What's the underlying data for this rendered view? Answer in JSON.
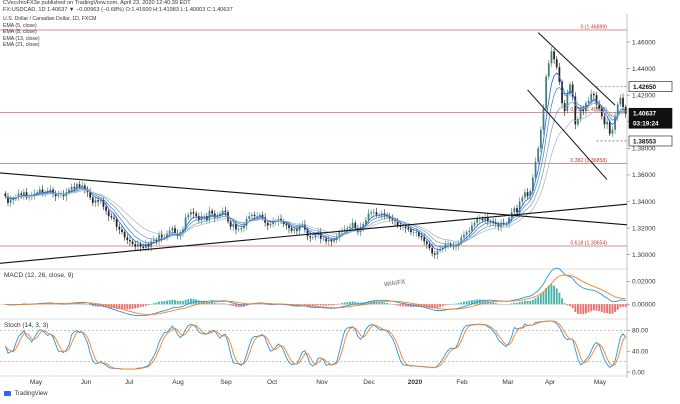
{
  "header": {
    "line1": "CVecchioFX3e published on TradingView.com, April 23, 2020 12:40:39 EDT",
    "line2": "FX:USDCAD, 1D  1.40637  ▼ −0.00963 (−0.68%)  O:1.41600  H:1.41983  L:1.40003  C:1.40637"
  },
  "legend": {
    "title": "U.S. Dollar / Canadian Dollar, 1D, FXCM",
    "items": [
      "EMA (5, close)",
      "EMA (8, close)",
      "EMA (13, close)",
      "EMA (21, close)"
    ]
  },
  "footer": {
    "brand": "TradingView"
  },
  "watermark": "WikiFX",
  "colors": {
    "up": "#3f7d76",
    "down": "#222222",
    "ema5": "#2b5fd9",
    "ema21": "#9fb8c8",
    "fib": "#d46a6a",
    "macd": "#2196f3",
    "signal": "#ff7f1f"
  },
  "chart_data": [
    {
      "type": "candlestick",
      "x_labels": [
        "May",
        "Jun",
        "Jul",
        "Aug",
        "Sep",
        "Oct",
        "Nov",
        "Dec",
        "2020",
        "Feb",
        "Mar",
        "Apr",
        "May"
      ],
      "ylim": [
        1.29,
        1.472
      ],
      "y_ticks": [
        "1.46000",
        "1.44000",
        "1.42000",
        "1.40000",
        "1.38000",
        "1.36000",
        "1.34000",
        "1.32000",
        "1.30000"
      ],
      "closes": [
        1.344,
        1.339,
        1.341,
        1.342,
        1.343,
        1.346,
        1.345,
        1.347,
        1.343,
        1.344,
        1.345,
        1.346,
        1.347,
        1.349,
        1.347,
        1.347,
        1.348,
        1.349,
        1.346,
        1.344,
        1.345,
        1.346,
        1.344,
        1.347,
        1.349,
        1.351,
        1.35,
        1.353,
        1.351,
        1.352,
        1.349,
        1.347,
        1.343,
        1.339,
        1.341,
        1.34,
        1.341,
        1.336,
        1.333,
        1.329,
        1.328,
        1.327,
        1.321,
        1.319,
        1.317,
        1.313,
        1.311,
        1.31,
        1.308,
        1.306,
        1.308,
        1.306,
        1.305,
        1.308,
        1.306,
        1.31,
        1.311,
        1.31,
        1.315,
        1.313,
        1.313,
        1.316,
        1.318,
        1.32,
        1.316,
        1.314,
        1.317,
        1.319,
        1.328,
        1.33,
        1.332,
        1.331,
        1.329,
        1.326,
        1.329,
        1.329,
        1.326,
        1.333,
        1.331,
        1.328,
        1.329,
        1.331,
        1.333,
        1.332,
        1.325,
        1.321,
        1.323,
        1.319,
        1.319,
        1.32,
        1.322,
        1.327,
        1.329,
        1.33,
        1.329,
        1.329,
        1.33,
        1.328,
        1.324,
        1.322,
        1.323,
        1.325,
        1.325,
        1.327,
        1.325,
        1.323,
        1.322,
        1.32,
        1.318,
        1.319,
        1.318,
        1.322,
        1.323,
        1.319,
        1.314,
        1.313,
        1.313,
        1.315,
        1.317,
        1.312,
        1.312,
        1.31,
        1.311,
        1.31,
        1.311,
        1.313,
        1.317,
        1.318,
        1.319,
        1.32,
        1.321,
        1.324,
        1.32,
        1.317,
        1.321,
        1.323,
        1.326,
        1.331,
        1.332,
        1.332,
        1.33,
        1.33,
        1.331,
        1.33,
        1.329,
        1.327,
        1.326,
        1.325,
        1.322,
        1.321,
        1.321,
        1.32,
        1.319,
        1.317,
        1.317,
        1.317,
        1.314,
        1.313,
        1.31,
        1.308,
        1.305,
        1.301,
        1.3,
        1.303,
        1.304,
        1.305,
        1.308,
        1.308,
        1.307,
        1.306,
        1.307,
        1.309,
        1.313,
        1.315,
        1.317,
        1.318,
        1.322,
        1.324,
        1.327,
        1.327,
        1.326,
        1.328,
        1.325,
        1.325,
        1.324,
        1.323,
        1.321,
        1.324,
        1.323,
        1.323,
        1.328,
        1.332,
        1.335,
        1.332,
        1.34,
        1.343,
        1.347,
        1.344,
        1.348,
        1.358,
        1.37,
        1.38,
        1.394,
        1.41,
        1.434,
        1.444,
        1.453,
        1.447,
        1.441,
        1.43,
        1.414,
        1.408,
        1.421,
        1.428,
        1.419,
        1.398,
        1.402,
        1.409,
        1.408,
        1.414,
        1.416,
        1.421,
        1.42,
        1.413,
        1.41,
        1.404,
        1.398,
        1.4,
        1.391,
        1.394,
        1.404,
        1.413,
        1.418,
        1.411,
        1.406
      ],
      "fib_levels": [
        {
          "label": "0 (1.46899)",
          "value": 1.46899
        },
        {
          "label": "0.236 (1.40696)",
          "value": 1.40696
        },
        {
          "label": "0.382 (1.36858)",
          "value": 1.36858
        },
        {
          "label": "0.618 (1.30654)",
          "value": 1.30654
        }
      ],
      "price_tags": [
        {
          "label": "1.42650",
          "value": 1.4265
        },
        {
          "label": "1.40637",
          "value": 1.40637
        },
        {
          "label": "03:19:24",
          "value": 1.3965
        },
        {
          "label": "1.38553",
          "value": 1.38553
        }
      ]
    },
    {
      "type": "line",
      "name_label": "MACD (12, 26, close, 9)",
      "y_ticks": [
        "0.02000",
        "0.00000"
      ],
      "ylim": [
        -0.012,
        0.03
      ]
    },
    {
      "type": "line",
      "name_label": "Stoch (14, 3, 3)",
      "y_ticks": [
        "80.00",
        "40.00",
        "0.00"
      ],
      "ylim": [
        0,
        100
      ]
    }
  ]
}
